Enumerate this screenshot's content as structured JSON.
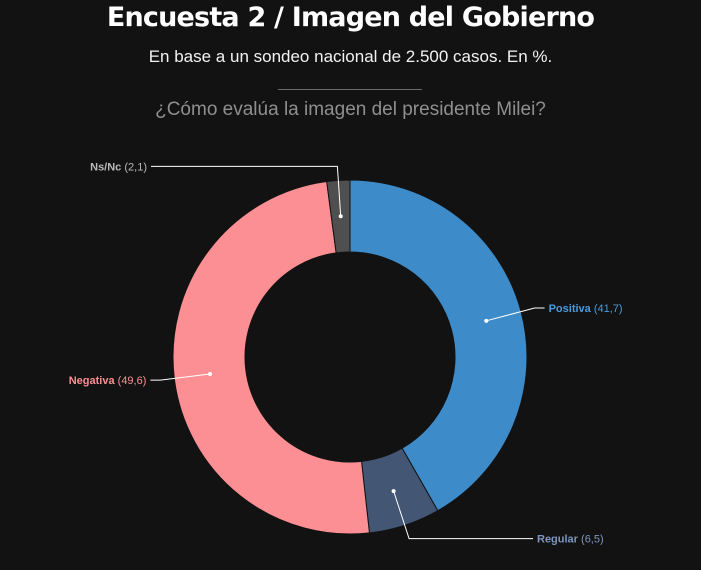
{
  "header": {
    "title": "Encuesta 2 / Imagen del Gobierno",
    "subtitle": "En base a un sondeo nacional de 2.500 casos. En %.",
    "question": "¿Cómo evalúa la imagen del presidente Milei?"
  },
  "chart_data": {
    "type": "pie",
    "variant": "donut",
    "title": "Encuesta 2 / Imagen del Gobierno",
    "subtitle": "En base a un sondeo nacional de 2.500 casos. En %.",
    "question": "¿Cómo evalúa la imagen del presidente Milei?",
    "legend": "none",
    "start": "top, clockwise",
    "slices": [
      {
        "name": "Positiva",
        "value": 41.7,
        "label_value": "(41,7)",
        "color": "#3d8bc9",
        "label_color": "#4a9bdc",
        "label_side": "right"
      },
      {
        "name": "Regular",
        "value": 6.5,
        "label_value": "(6,5)",
        "color": "#435775",
        "label_color": "#7d96bf",
        "label_side": "right"
      },
      {
        "name": "Negativa",
        "value": 49.6,
        "label_value": "(49,6)",
        "color": "#fb8f93",
        "label_color": "#fb8f93",
        "label_side": "left"
      },
      {
        "name": "Ns/Nc",
        "value": 2.1,
        "label_value": "(2,1)",
        "color": "#4f4f4f",
        "label_color": "#b9b9b9",
        "label_side": "left"
      }
    ]
  }
}
